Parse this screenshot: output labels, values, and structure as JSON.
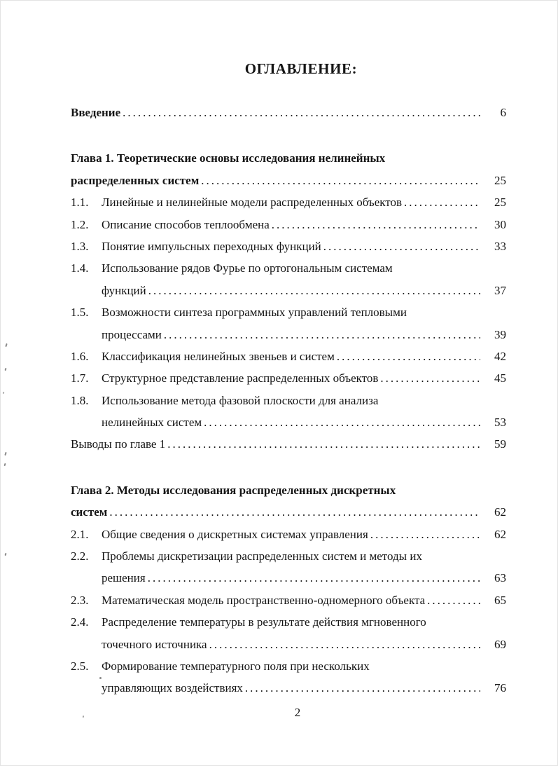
{
  "document": {
    "title": "ОГЛАВЛЕНИЕ:",
    "footer_page_number": "2"
  },
  "toc": {
    "rows": [
      {
        "text": "Введение",
        "bold": true,
        "dots": true,
        "page": "6"
      },
      {
        "text": "Глава 1. Теоретические основы исследования нелинейных",
        "bold": true,
        "dots": false,
        "page": null,
        "section_gap": true
      },
      {
        "text": "распределенных систем",
        "bold": true,
        "dots": true,
        "page": "25"
      },
      {
        "num": "1.1.",
        "text": "Линейные и нелинейные модели распределенных объектов",
        "dots": true,
        "page": "25"
      },
      {
        "num": "1.2.",
        "text": "Описание способов теплообмена",
        "dots": true,
        "page": "30"
      },
      {
        "num": "1.3.",
        "text": "Понятие импульсных переходных функций",
        "dots": true,
        "page": "33"
      },
      {
        "num": "1.4.",
        "text": "Использование рядов Фурье по ортогональным системам",
        "dots": false,
        "page": null
      },
      {
        "text": "функций",
        "indent": true,
        "dots": true,
        "page": "37"
      },
      {
        "num": "1.5.",
        "text": "Возможности синтеза программных управлений тепловыми",
        "dots": false,
        "page": null
      },
      {
        "text": "процессами",
        "indent": true,
        "dots": true,
        "page": "39"
      },
      {
        "num": "1.6.",
        "text": "Классификация нелинейных звеньев и систем",
        "dots": true,
        "page": "42"
      },
      {
        "num": "1.7.",
        "text": "Структурное представление распределенных объектов",
        "dots": true,
        "page": "45"
      },
      {
        "num": "1.8.",
        "text": "Использование метода фазовой плоскости для анализа",
        "dots": false,
        "page": null
      },
      {
        "text": "нелинейных систем",
        "indent": true,
        "dots": true,
        "page": "53"
      },
      {
        "text": "Выводы по главе 1",
        "dots": true,
        "page": "59"
      },
      {
        "text": "Глава 2. Методы исследования распределенных дискретных",
        "bold": true,
        "dots": false,
        "page": null,
        "section_gap": true
      },
      {
        "text": "систем",
        "bold": true,
        "dots": true,
        "page": "62"
      },
      {
        "num": "2.1.",
        "text": "Общие сведения о дискретных системах управления",
        "dots": true,
        "page": "62"
      },
      {
        "num": "2.2.",
        "text": "Проблемы дискретизации распределенных систем и методы их",
        "dots": false,
        "page": null
      },
      {
        "text": "решения",
        "indent": true,
        "dots": true,
        "page": "63"
      },
      {
        "num": "2.3.",
        "text": "Математическая модель пространственно-одномерного объекта",
        "dots": true,
        "page": "65"
      },
      {
        "num": "2.4.",
        "text": "Распределение температуры в результате действия мгновенного",
        "dots": false,
        "page": null
      },
      {
        "text": "точечного источника",
        "indent": true,
        "dots": true,
        "page": "69"
      },
      {
        "num": "2.5.",
        "text": "Формирование температурного поля при нескольких",
        "dots": false,
        "page": null
      },
      {
        "text": "управляющих воздействиях",
        "indent": true,
        "dots": true,
        "page": "76"
      }
    ]
  }
}
